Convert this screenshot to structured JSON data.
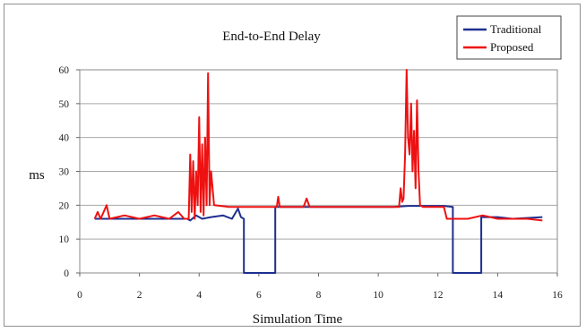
{
  "chart_data": {
    "type": "line",
    "title": "End-to-End Delay",
    "xlabel": "Simulation Time",
    "ylabel": "ms",
    "xlim": [
      0,
      16
    ],
    "ylim": [
      0,
      60
    ],
    "xticks": [
      0,
      2,
      4,
      6,
      8,
      10,
      12,
      14,
      16
    ],
    "yticks": [
      0,
      10,
      20,
      30,
      40,
      50,
      60
    ],
    "grid": "horizontal",
    "legend": "top-right",
    "series": [
      {
        "name": "Traditional",
        "color": "#1f2f8f",
        "points": [
          [
            0.5,
            16
          ],
          [
            3.6,
            16
          ],
          [
            3.7,
            15.5
          ],
          [
            3.9,
            17
          ],
          [
            4.1,
            16
          ],
          [
            4.4,
            16.5
          ],
          [
            4.8,
            17
          ],
          [
            5.1,
            16
          ],
          [
            5.3,
            19
          ],
          [
            5.4,
            16.5
          ],
          [
            5.5,
            16
          ],
          [
            5.5,
            0
          ],
          [
            6.55,
            0
          ],
          [
            6.55,
            19.5
          ],
          [
            7.5,
            19.5
          ],
          [
            9,
            19.5
          ],
          [
            10.5,
            19.5
          ],
          [
            11,
            19.8
          ],
          [
            11.5,
            19.8
          ],
          [
            12.2,
            19.8
          ],
          [
            12.5,
            19.5
          ],
          [
            12.5,
            0
          ],
          [
            13.45,
            0
          ],
          [
            13.45,
            16.5
          ],
          [
            14,
            16.5
          ],
          [
            14.5,
            16
          ],
          [
            15.5,
            16.5
          ]
        ]
      },
      {
        "name": "Proposed",
        "color": "#ee1111",
        "points": [
          [
            0.5,
            16
          ],
          [
            0.6,
            18
          ],
          [
            0.7,
            16
          ],
          [
            0.9,
            20
          ],
          [
            1.0,
            16
          ],
          [
            1.5,
            17
          ],
          [
            2,
            16
          ],
          [
            2.5,
            17
          ],
          [
            3,
            16
          ],
          [
            3.3,
            18
          ],
          [
            3.5,
            16
          ],
          [
            3.65,
            16
          ],
          [
            3.7,
            35
          ],
          [
            3.75,
            18
          ],
          [
            3.8,
            33
          ],
          [
            3.85,
            16
          ],
          [
            3.9,
            30
          ],
          [
            3.95,
            20
          ],
          [
            4.0,
            46
          ],
          [
            4.05,
            18
          ],
          [
            4.1,
            38
          ],
          [
            4.15,
            17
          ],
          [
            4.2,
            40
          ],
          [
            4.25,
            20
          ],
          [
            4.3,
            59
          ],
          [
            4.35,
            20
          ],
          [
            4.4,
            30
          ],
          [
            4.5,
            20
          ],
          [
            5,
            19.5
          ],
          [
            6,
            19.5
          ],
          [
            6.6,
            19.5
          ],
          [
            6.65,
            22.5
          ],
          [
            6.7,
            19.5
          ],
          [
            7.5,
            19.5
          ],
          [
            7.6,
            22
          ],
          [
            7.7,
            19.5
          ],
          [
            9,
            19.5
          ],
          [
            10.5,
            19.5
          ],
          [
            10.7,
            19.5
          ],
          [
            10.75,
            25
          ],
          [
            10.8,
            21
          ],
          [
            10.85,
            22
          ],
          [
            10.9,
            35
          ],
          [
            10.95,
            60
          ],
          [
            11.0,
            40
          ],
          [
            11.05,
            35
          ],
          [
            11.1,
            50
          ],
          [
            11.15,
            30
          ],
          [
            11.2,
            42
          ],
          [
            11.25,
            25
          ],
          [
            11.3,
            51
          ],
          [
            11.35,
            30
          ],
          [
            11.4,
            20
          ],
          [
            11.5,
            19.5
          ],
          [
            12,
            19.5
          ],
          [
            12.2,
            19.5
          ],
          [
            12.3,
            16
          ],
          [
            13,
            16
          ],
          [
            13.5,
            17
          ],
          [
            14,
            16
          ],
          [
            14.5,
            16
          ],
          [
            15,
            16
          ],
          [
            15.5,
            15.5
          ]
        ]
      }
    ]
  }
}
